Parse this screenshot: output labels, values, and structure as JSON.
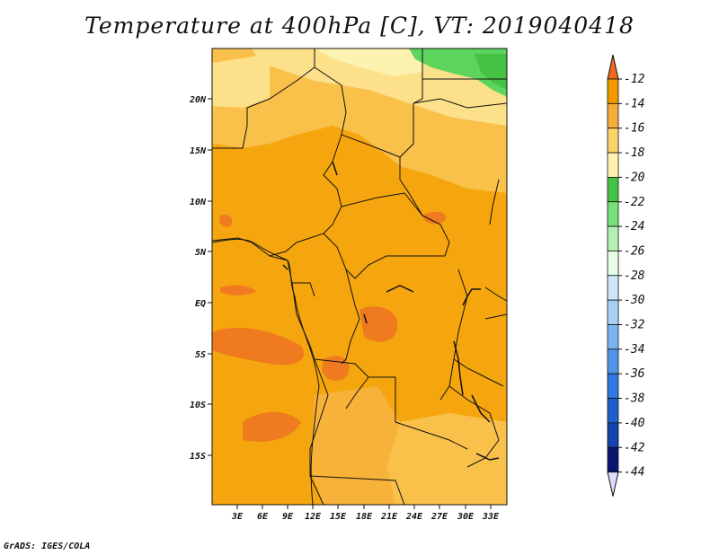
{
  "title": "Temperature at 400hPa [C], VT: 2019040418",
  "credit": "GrADS: IGES/COLA",
  "map": {
    "lat_ticks": [
      "20N",
      "15N",
      "10N",
      "5N",
      "EQ",
      "5S",
      "10S",
      "15S"
    ],
    "lon_ticks": [
      "3E",
      "6E",
      "9E",
      "12E",
      "15E",
      "18E",
      "21E",
      "24E",
      "27E",
      "30E",
      "33E"
    ]
  },
  "colorbar": {
    "levels": [
      "-12",
      "-14",
      "-16",
      "-18",
      "-20",
      "-22",
      "-24",
      "-26",
      "-28",
      "-30",
      "-32",
      "-34",
      "-36",
      "-38",
      "-40",
      "-42",
      "-44"
    ],
    "colors": [
      "#f06a1e",
      "#f09a00",
      "#f5ad3a",
      "#fcd26a",
      "#fdf2b0",
      "#44c244",
      "#78e078",
      "#b4f0b4",
      "#e6fde6",
      "#cfe7fa",
      "#a8d0f5",
      "#7ab5f0",
      "#4f96ea",
      "#2f78e0",
      "#1f5fcc",
      "#1344b0",
      "#0c1470",
      "#dcdcff"
    ]
  },
  "colors": {
    "land_base": "#f5a60e",
    "north_warm": "#f9c04a",
    "far_north": "#fde08a",
    "green": "#5dd45d",
    "hot_spot": "#ef7a20",
    "border": "#111111"
  }
}
